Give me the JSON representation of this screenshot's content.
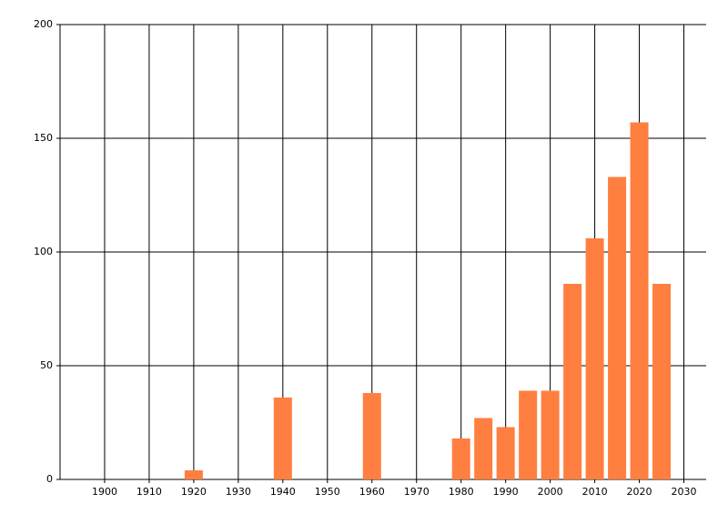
{
  "chart_data": {
    "type": "bar",
    "x": [
      1920,
      1940,
      1960,
      1980,
      1985,
      1990,
      1995,
      2000,
      2005,
      2010,
      2015,
      2020,
      2025
    ],
    "values": [
      4,
      36,
      38,
      18,
      27,
      23,
      39,
      39,
      86,
      106,
      133,
      157,
      86
    ],
    "color": "#ff7f40",
    "xlim": [
      1890,
      2035
    ],
    "xticks": [
      1900,
      1910,
      1920,
      1930,
      1940,
      1950,
      1960,
      1970,
      1980,
      1990,
      2000,
      2010,
      2020,
      2030
    ],
    "ylim": [
      0,
      200
    ],
    "yticks": [
      0,
      50,
      100,
      150,
      200
    ],
    "grid": true
  }
}
